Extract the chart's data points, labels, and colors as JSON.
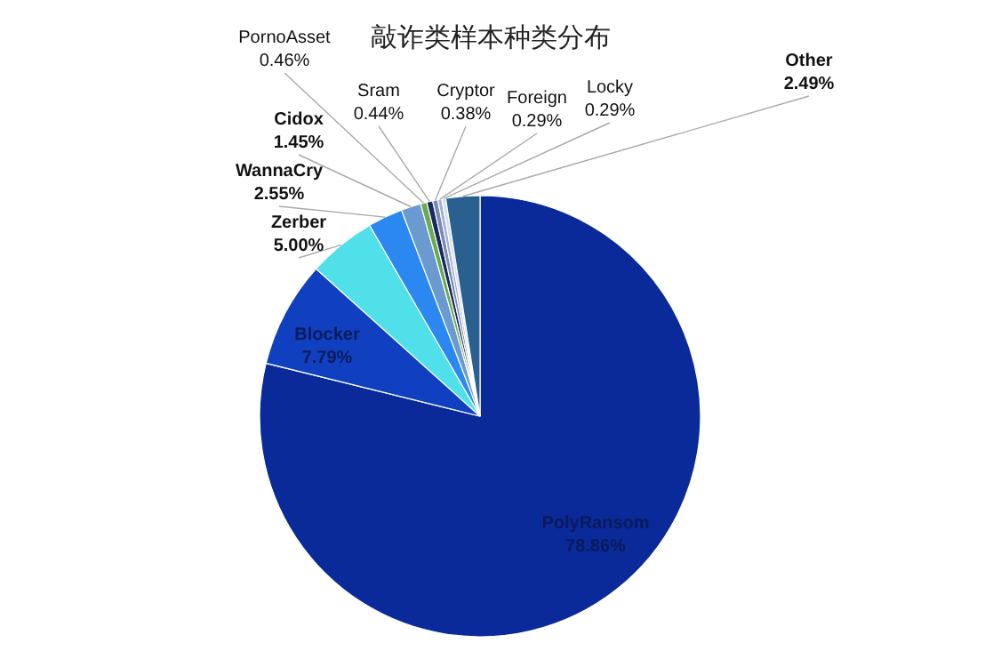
{
  "chart_data": {
    "type": "pie",
    "title": "敲诈类样本种类分布",
    "categories": [
      "PolyRansom",
      "Blocker",
      "Zerber",
      "WannaCry",
      "Cidox",
      "PornoAsset",
      "Sram",
      "Cryptor",
      "Foreign",
      "Locky",
      "Other"
    ],
    "values": [
      78.86,
      7.79,
      5.0,
      2.55,
      1.45,
      0.46,
      0.44,
      0.38,
      0.29,
      0.29,
      2.49
    ],
    "value_labels": [
      "78.86%",
      "7.79%",
      "5.00%",
      "2.55%",
      "1.45%",
      "0.46%",
      "0.44%",
      "0.38%",
      "0.29%",
      "0.29%",
      "2.49%"
    ],
    "colors": [
      "#0a2a9a",
      "#1040c0",
      "#50e0ea",
      "#2a88f0",
      "#6a9ad0",
      "#6aaa50",
      "#1a2a60",
      "#7a8ab0",
      "#a0b0d0",
      "#d8e0f0",
      "#2a6090"
    ],
    "legend": false
  }
}
